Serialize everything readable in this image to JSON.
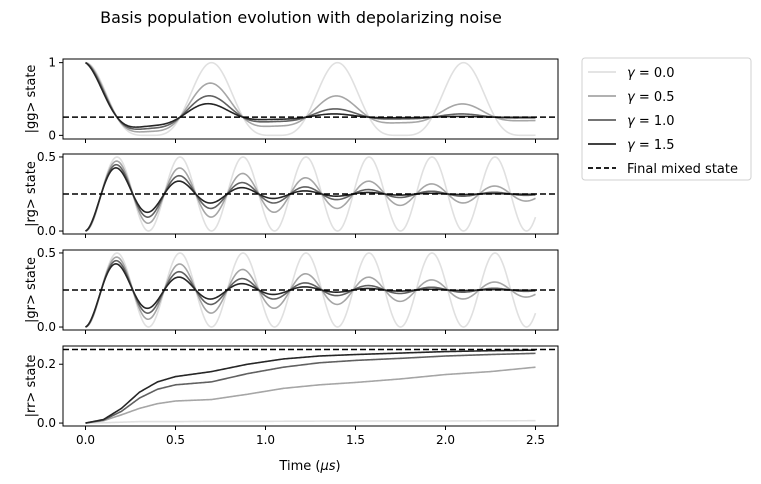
{
  "chart_data": {
    "type": "line",
    "title": "Basis population evolution with depolarizing noise",
    "xlabel": "Time (μs)",
    "xlabel_plain": "Time (",
    "xlabel_unit": "μs",
    "xlabel_close": ")",
    "x_ticks": [
      "0.0",
      "0.5",
      "1.0",
      "1.5",
      "2.0",
      "2.5"
    ],
    "xlim": [
      -0.125,
      2.625
    ],
    "grid": false,
    "legend_placement": "outside-top-right",
    "legend": [
      {
        "label": "γ = 0.0",
        "symbol": "γ",
        "rest": " = 0.0",
        "color": "#e0e0e0",
        "style": "solid"
      },
      {
        "label": "γ = 0.5",
        "symbol": "γ",
        "rest": " = 0.5",
        "color": "#a6a6a6",
        "style": "solid"
      },
      {
        "label": "γ = 1.0",
        "symbol": "γ",
        "rest": " = 1.0",
        "color": "#616161",
        "style": "solid"
      },
      {
        "label": "γ = 1.5",
        "symbol": "γ",
        "rest": " = 1.5",
        "color": "#262626",
        "style": "solid"
      },
      {
        "label": "Final mixed state",
        "color": "#000000",
        "style": "dashed"
      }
    ],
    "panels": [
      {
        "ylabel": "|gg> state",
        "ylim": [
          -0.05,
          1.05
        ],
        "y_ticks": [
          "0",
          "1"
        ],
        "y_tick_values": [
          0,
          1
        ],
        "reference": 0.25,
        "kind": "gg"
      },
      {
        "ylabel": "|rg> state",
        "ylim": [
          -0.02,
          0.52
        ],
        "y_ticks": [
          "0.0",
          "0.5"
        ],
        "y_tick_values": [
          0,
          0.5
        ],
        "reference": 0.25,
        "kind": "rg"
      },
      {
        "ylabel": "|gr> state",
        "ylim": [
          -0.02,
          0.52
        ],
        "y_ticks": [
          "0.0",
          "0.5"
        ],
        "y_tick_values": [
          0,
          0.5
        ],
        "reference": 0.25,
        "kind": "rg"
      },
      {
        "ylabel": "|rr> state",
        "ylim": [
          -0.01,
          0.262
        ],
        "y_ticks": [
          "0.0",
          "0.2"
        ],
        "y_tick_values": [
          0,
          0.2
        ],
        "reference": 0.25,
        "kind": "rr"
      }
    ],
    "series": [
      {
        "gamma": 0.0,
        "color": "#e0e0e0",
        "rr": {
          "x": [
            0,
            0.1,
            0.2,
            0.3,
            0.5,
            0.7,
            1.0,
            1.5,
            2.0,
            2.5
          ],
          "y": [
            0,
            0.001,
            0.003,
            0.005,
            0.005,
            0.006,
            0.006,
            0.007,
            0.007,
            0.008
          ]
        }
      },
      {
        "gamma": 0.5,
        "color": "#a6a6a6",
        "rr": {
          "x": [
            0,
            0.1,
            0.2,
            0.3,
            0.4,
            0.5,
            0.7,
            0.9,
            1.1,
            1.3,
            1.5,
            1.75,
            2.0,
            2.25,
            2.5
          ],
          "y": [
            0,
            0.008,
            0.028,
            0.05,
            0.066,
            0.075,
            0.08,
            0.098,
            0.118,
            0.13,
            0.138,
            0.15,
            0.165,
            0.175,
            0.19
          ]
        }
      },
      {
        "gamma": 1.0,
        "color": "#616161",
        "rr": {
          "x": [
            0,
            0.1,
            0.2,
            0.3,
            0.4,
            0.5,
            0.7,
            0.9,
            1.1,
            1.3,
            1.5,
            1.75,
            2.0,
            2.25,
            2.5
          ],
          "y": [
            0,
            0.01,
            0.04,
            0.085,
            0.115,
            0.13,
            0.14,
            0.168,
            0.19,
            0.205,
            0.213,
            0.22,
            0.228,
            0.233,
            0.237
          ]
        }
      },
      {
        "gamma": 1.5,
        "color": "#262626",
        "rr": {
          "x": [
            0,
            0.1,
            0.2,
            0.3,
            0.4,
            0.5,
            0.7,
            0.9,
            1.1,
            1.3,
            1.5,
            1.75,
            2.0,
            2.25,
            2.5
          ],
          "y": [
            0,
            0.012,
            0.05,
            0.105,
            0.14,
            0.158,
            0.175,
            0.2,
            0.218,
            0.228,
            0.233,
            0.238,
            0.243,
            0.246,
            0.248
          ]
        }
      }
    ],
    "oscillation": {
      "period": 0.7,
      "rg_peak": 0.5,
      "gg_start": 1.0,
      "t_max": 2.5
    }
  }
}
